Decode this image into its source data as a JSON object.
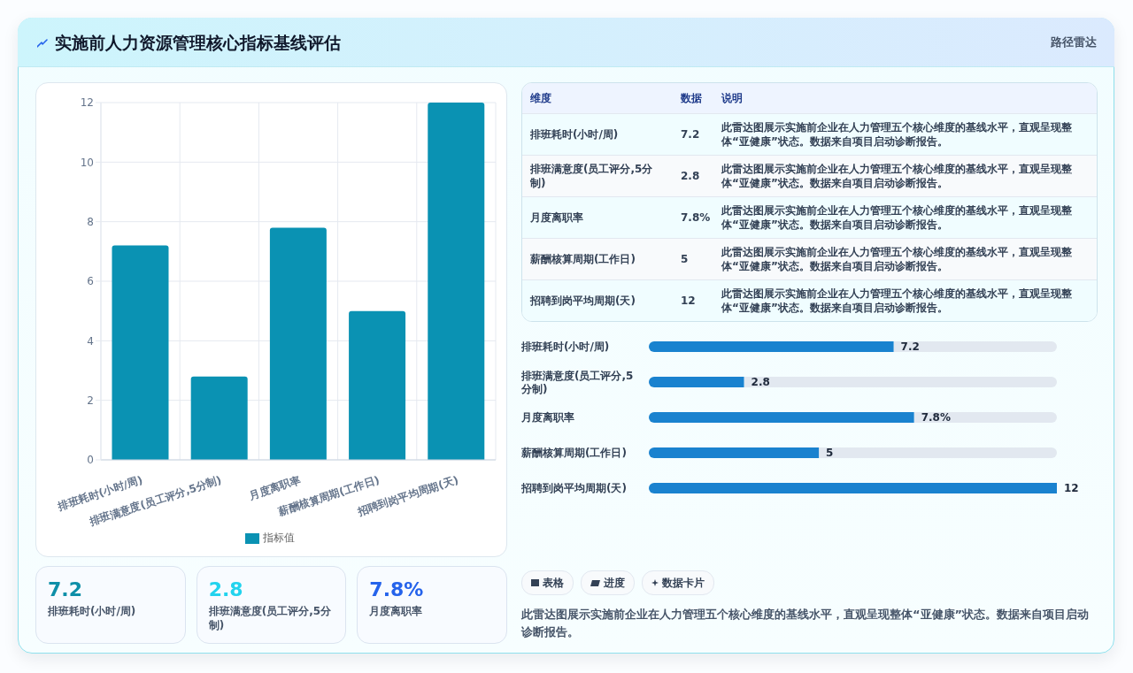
{
  "chart_data": [
    {
      "type": "other",
      "title": "实施前人力资源管理核心指标基线评估",
      "subtitle": "路径雷达"
    },
    {
      "type": "bar",
      "categories": [
        "排班耗时(小时/周)",
        "排班满意度(员工评分,5分制)",
        "月度离职率",
        "薪酬核算周期(工作日)",
        "招聘到岗平均周期(天)"
      ],
      "series": [
        {
          "name": "指标值",
          "color": "#0a92b3",
          "values": [
            7.2,
            2.8,
            7.8,
            5,
            12
          ]
        }
      ],
      "ylim": [
        0,
        12
      ],
      "yticks": [
        0,
        2,
        4,
        6,
        8,
        10,
        12
      ],
      "grid": true,
      "legend": "bottom"
    },
    {
      "type": "other",
      "categories": [
        "排班耗时(小时/周)",
        "排班满意度(员工评分,5分制)",
        "月度离职率",
        "薪酬核算周期(工作日)",
        "招聘到岗平均周期(天)"
      ],
      "value_labels": [
        "7.2",
        "2.8",
        "7.8%",
        "5",
        "12"
      ],
      "annotations": [
        "维度",
        "数据",
        "说明",
        "此雷达图展示实施前企业在人力管理五个核心维度的基线水平，直观呈现整体“亚健康”状态。数据来自项目启动诊断报告。"
      ]
    },
    {
      "type": "bar",
      "orientation": "horizontal",
      "categories": [
        "排班耗时(小时/周)",
        "排班满意度(员工评分,5分制)",
        "月度离职率",
        "薪酬核算周期(工作日)",
        "招聘到岗平均周期(天)"
      ],
      "values": [
        7.2,
        2.8,
        7.8,
        5,
        12
      ],
      "value_labels": [
        "7.2",
        "2.8",
        "7.8%",
        "5",
        "12"
      ],
      "color": "#1a82cf",
      "tick_labels": "y"
    },
    {
      "type": "other",
      "categories": [
        "排班耗时(小时/周)",
        "排班满意度(员工评分,5分制)",
        "月度离职率"
      ],
      "value_labels": [
        "7.2",
        "2.8",
        "7.8%"
      ]
    },
    {
      "type": "other",
      "categories": [
        "表格",
        "进度",
        "数据卡片"
      ],
      "annotations": [
        "此雷达图展示实施前企业在人力管理五个核心维度的基线水平，直观呈现整体“亚健康”状态。数据来自项目启动诊断报告。"
      ]
    }
  ]
}
